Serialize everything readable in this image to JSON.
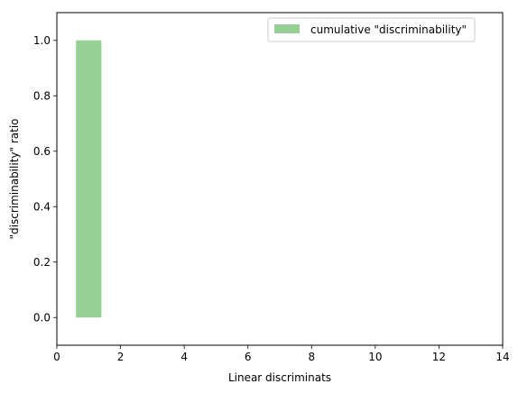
{
  "chart_data": {
    "type": "bar",
    "xlabel": "Linear discriminats",
    "ylabel": "\"discriminability\" ratio",
    "xlim": [
      0,
      14
    ],
    "ylim": [
      -0.1,
      1.1
    ],
    "xticks": [
      0,
      2,
      4,
      6,
      8,
      10,
      12,
      14
    ],
    "yticks": [
      0.0,
      0.2,
      0.4,
      0.6,
      0.8,
      1.0
    ],
    "bar_width": 0.8,
    "legend_position": "top-right",
    "grid": false,
    "series": [
      {
        "name": "cumulative \"discriminability\"",
        "color": "#99d095",
        "x": [
          1
        ],
        "values": [
          1.0
        ]
      }
    ]
  }
}
